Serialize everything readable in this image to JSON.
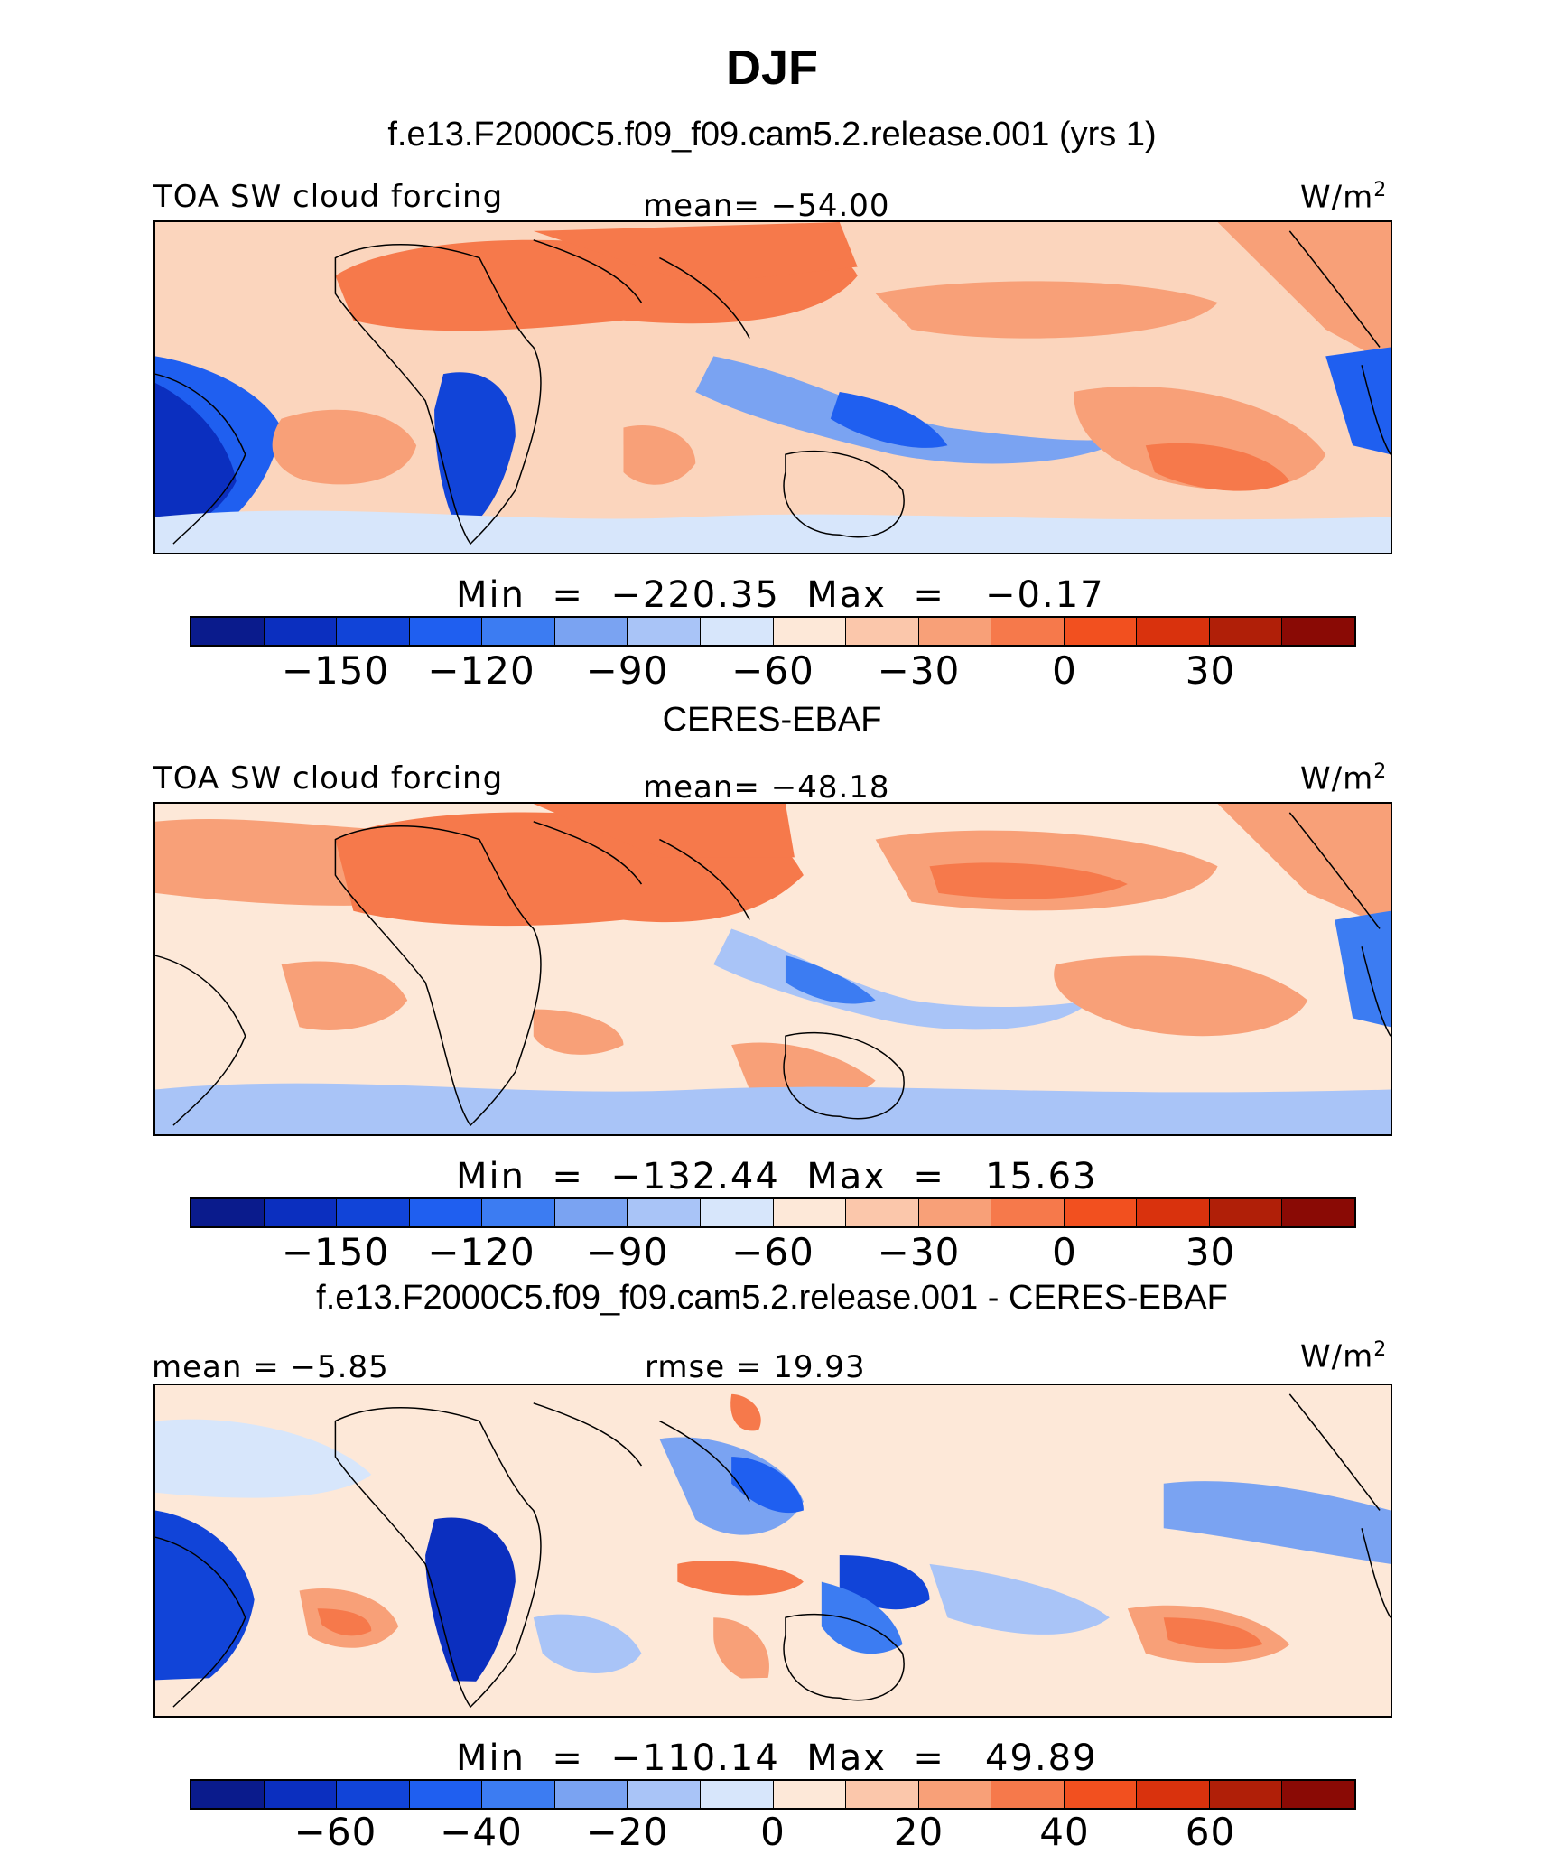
{
  "figure": {
    "title": "DJF",
    "units_label": "W/m",
    "units_power": "2"
  },
  "panels": [
    {
      "title": "f.e13.F2000C5.f09_f09.cam5.2.release.001 (yrs 1)",
      "left_label": "TOA SW cloud forcing",
      "center_label": "mean= −54.00",
      "minmax": "Min  =  −220.35  Max  =   −0.17",
      "tick_labels": [
        "−150",
        "−120",
        "−90",
        "−60",
        "−30",
        "0",
        "30"
      ]
    },
    {
      "title": "CERES-EBAF",
      "left_label": "TOA SW cloud forcing",
      "center_label": "mean= −48.18",
      "minmax": "Min  =  −132.44  Max  =   15.63",
      "tick_labels": [
        "−150",
        "−120",
        "−90",
        "−60",
        "−30",
        "0",
        "30"
      ]
    },
    {
      "title": "f.e13.F2000C5.f09_f09.cam5.2.release.001 - CERES-EBAF",
      "left_label": "mean  =   −5.85",
      "center_label": "rmse  =   19.93",
      "minmax": "Min  =  −110.14  Max  =   49.89",
      "tick_labels": [
        "−60",
        "−40",
        "−20",
        "0",
        "20",
        "40",
        "60"
      ]
    }
  ],
  "colorbar": {
    "colors": [
      "#0a1b8c",
      "#0b2fbf",
      "#1144d8",
      "#1f5ff0",
      "#3c7cf2",
      "#7aa3f2",
      "#a9c4f7",
      "#d7e6fb",
      "#fde8d8",
      "#fbc7ab",
      "#f8a078",
      "#f6794b",
      "#f2501f",
      "#d9320d",
      "#b01f08",
      "#8a0a05"
    ]
  },
  "chart_data": [
    {
      "type": "heatmap",
      "title": "f.e13.F2000C5.f09_f09.cam5.2.release.001 (yrs 1)",
      "variable": "TOA SW cloud forcing",
      "units": "W/m2",
      "mean": -54.0,
      "min": -220.35,
      "max": -0.17,
      "contour_ticks": [
        -150,
        -120,
        -90,
        -60,
        -30,
        0,
        30
      ]
    },
    {
      "type": "heatmap",
      "title": "CERES-EBAF",
      "variable": "TOA SW cloud forcing",
      "units": "W/m2",
      "mean": -48.18,
      "min": -132.44,
      "max": 15.63,
      "contour_ticks": [
        -150,
        -120,
        -90,
        -60,
        -30,
        0,
        30
      ]
    },
    {
      "type": "heatmap",
      "title": "f.e13.F2000C5.f09_f09.cam5.2.release.001 - CERES-EBAF",
      "units": "W/m2",
      "mean": -5.85,
      "rmse": 19.93,
      "min": -110.14,
      "max": 49.89,
      "contour_ticks": [
        -60,
        -40,
        -20,
        0,
        20,
        40,
        60
      ]
    }
  ]
}
